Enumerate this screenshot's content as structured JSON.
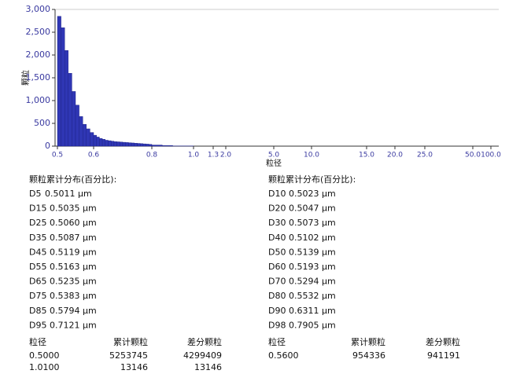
{
  "chart_data": {
    "type": "histogram",
    "y_label": "颗粒",
    "x_label": "粒径",
    "color": "#2f36b4",
    "grid": false,
    "bins": [
      0.5,
      0.51,
      0.52,
      0.53,
      0.54,
      0.55,
      0.56,
      0.57,
      0.58,
      0.59,
      0.6,
      0.61,
      0.62,
      0.63,
      0.64,
      0.65,
      0.66,
      0.67,
      0.68,
      0.69,
      0.7,
      0.71,
      0.72,
      0.73,
      0.74,
      0.75,
      0.76,
      0.77,
      0.78,
      0.79,
      0.8,
      0.85,
      0.9,
      1.0
    ],
    "values": [
      2850,
      2600,
      2100,
      1600,
      1200,
      900,
      650,
      480,
      380,
      300,
      240,
      200,
      170,
      150,
      130,
      120,
      110,
      100,
      95,
      90,
      85,
      80,
      75,
      70,
      65,
      60,
      55,
      50,
      45,
      40,
      25,
      15,
      5
    ],
    "xlim": [
      0.5,
      100
    ],
    "xticks": [
      0.5,
      0.6,
      0.8,
      {
        "value": 1,
        "label": "1.0"
      },
      1.3,
      {
        "value": 2,
        "label": "2.0"
      },
      {
        "value": 5,
        "label": "5.0"
      },
      {
        "value": 10,
        "label": "10.0"
      },
      {
        "value": 15,
        "label": "15.0"
      },
      {
        "value": 20,
        "label": "20.0"
      },
      {
        "value": 25,
        "label": "25.0"
      },
      {
        "value": 50,
        "label": "50.0"
      },
      {
        "value": 100,
        "label": "100.0"
      }
    ],
    "ylim": [
      0,
      3000
    ],
    "yticks": [
      0,
      500,
      {
        "value": 1000,
        "label": "1,000"
      },
      {
        "value": 1500,
        "label": "1,500"
      },
      {
        "value": 2000,
        "label": "2,000"
      },
      {
        "value": 2500,
        "label": "2,500"
      },
      {
        "value": 3000,
        "label": "3,000"
      }
    ]
  },
  "distribution": {
    "left": {
      "title": "颗粒累计分布(百分比):",
      "items": [
        {
          "label": "D5",
          "value": "0.5011 µm"
        },
        {
          "label": "D15",
          "value": "0.5035 µm"
        },
        {
          "label": "D25",
          "value": "0.5060 µm"
        },
        {
          "label": "D35",
          "value": "0.5087 µm"
        },
        {
          "label": "D45",
          "value": "0.5119 µm"
        },
        {
          "label": "D55",
          "value": "0.5163 µm"
        },
        {
          "label": "D65",
          "value": "0.5235 µm"
        },
        {
          "label": "D75",
          "value": "0.5383 µm"
        },
        {
          "label": "D85",
          "value": "0.5794 µm"
        },
        {
          "label": "D95",
          "value": "0.7121 µm"
        }
      ]
    },
    "right": {
      "title": "颗粒累计分布(百分比):",
      "items": [
        {
          "label": "D10",
          "value": "0.5023 µm"
        },
        {
          "label": "D20",
          "value": "0.5047 µm"
        },
        {
          "label": "D30",
          "value": "0.5073 µm"
        },
        {
          "label": "D40",
          "value": "0.5102 µm"
        },
        {
          "label": "D50",
          "value": "0.5139 µm"
        },
        {
          "label": "D60",
          "value": "0.5193 µm"
        },
        {
          "label": "D70",
          "value": "0.5294 µm"
        },
        {
          "label": "D80",
          "value": "0.5532 µm"
        },
        {
          "label": "D90",
          "value": "0.6311 µm"
        },
        {
          "label": "D98",
          "value": "0.7905 µm"
        }
      ]
    }
  },
  "tables": {
    "left": {
      "header": [
        "粒径",
        "累计颗粒",
        "差分颗粒"
      ],
      "rows": [
        [
          "0.5000",
          "5253745",
          "4299409"
        ],
        [
          "1.0100",
          "13146",
          "13146"
        ]
      ]
    },
    "right": {
      "header": [
        "粒径",
        "累计颗粒",
        "差分颗粒"
      ],
      "rows": [
        [
          "0.5600",
          "954336",
          "941191"
        ]
      ]
    }
  }
}
